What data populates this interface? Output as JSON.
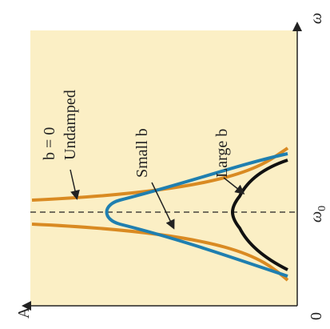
{
  "axes": {
    "amplitude_label": "A",
    "origin_label": "0",
    "frequency_label": "ω",
    "resonance_label": "ω",
    "resonance_subscript": "0"
  },
  "curves": {
    "undamped_line1": "b = 0",
    "undamped_line2": "Undamped",
    "small": "Small b",
    "large": "Large b"
  }
}
